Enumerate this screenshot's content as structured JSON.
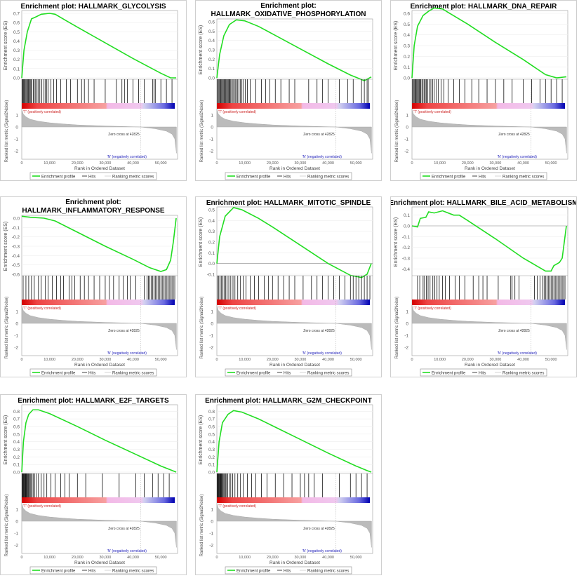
{
  "shared": {
    "es_axis_label": "Enrichment score (ES)",
    "metric_axis_label": "Ranked list metric (Signal2Noise)",
    "x_axis_label": "Rank in Ordered Dataset",
    "pos_label": "'T' (positively correlated)",
    "neg_label": "'N' (negatively correlated)",
    "zero_cross_label": "Zero cross at 42825",
    "zero_cross": 42825,
    "legend": [
      "Enrichment profile",
      "Hits",
      "Ranking metric scores"
    ],
    "x_ticks": [
      0,
      10000,
      20000,
      30000,
      40000,
      50000
    ],
    "x_tick_labels": [
      "0",
      "10,000",
      "20,000",
      "30,000",
      "40,000",
      "50,000"
    ],
    "x_max": 56000,
    "metric_ticks": [
      1,
      0,
      -1,
      -2
    ],
    "metric_profile": [
      [
        0,
        1.5
      ],
      [
        500,
        1.1
      ],
      [
        1500,
        0.85
      ],
      [
        3000,
        0.65
      ],
      [
        6000,
        0.48
      ],
      [
        10000,
        0.35
      ],
      [
        15000,
        0.25
      ],
      [
        20000,
        0.17
      ],
      [
        30000,
        0.08
      ],
      [
        42825,
        0
      ],
      [
        48000,
        -0.15
      ],
      [
        52000,
        -0.35
      ],
      [
        54000,
        -0.6
      ],
      [
        55000,
        -1.0
      ],
      [
        55600,
        -2.2
      ]
    ],
    "colors": {
      "es_line": "#22dd22",
      "pos": "#cc2222",
      "neg": "#2222bb"
    }
  },
  "chart_data": [
    {
      "type": "line",
      "title": [
        "Enrichment plot: HALLMARK_GLYCOLYSIS"
      ],
      "ylim": [
        0,
        0.7
      ],
      "y_ticks": [
        0,
        0.1,
        0.2,
        0.3,
        0.4,
        0.5,
        0.6,
        0.7
      ],
      "y_tick_labels": [
        "0.0",
        "0.1",
        "0.2",
        "0.3",
        "0.4",
        "0.5",
        "0.6",
        "0.7"
      ],
      "es": [
        [
          0,
          0
        ],
        [
          800,
          0.3
        ],
        [
          2000,
          0.5
        ],
        [
          3500,
          0.64
        ],
        [
          5000,
          0.66
        ],
        [
          7000,
          0.69
        ],
        [
          10000,
          0.7
        ],
        [
          12000,
          0.69
        ],
        [
          16000,
          0.62
        ],
        [
          20000,
          0.55
        ],
        [
          30000,
          0.38
        ],
        [
          40000,
          0.21
        ],
        [
          50000,
          0.05
        ],
        [
          53500,
          0
        ],
        [
          55500,
          0
        ]
      ],
      "hits": [
        200,
        400,
        600,
        900,
        1200,
        1500,
        1800,
        2100,
        2400,
        2700,
        3000,
        3300,
        3600,
        4200,
        4500,
        5000,
        5500,
        6000,
        6500,
        7200,
        8000,
        8500,
        9000,
        9500,
        10500,
        11500,
        12500,
        14000,
        16000,
        17500,
        20000,
        21500,
        22500,
        24000,
        26000,
        30000,
        34000,
        36000,
        37000,
        38000,
        40000,
        42000,
        44000,
        47000,
        47500,
        48000,
        50000,
        52000,
        54000
      ]
    },
    {
      "type": "line",
      "title": [
        "Enrichment plot:",
        "HALLMARK_OXIDATIVE_PHOSPHORYLATION"
      ],
      "ylim": [
        0,
        0.6
      ],
      "y_ticks": [
        0,
        0.1,
        0.2,
        0.3,
        0.4,
        0.5,
        0.6
      ],
      "y_tick_labels": [
        "0.0",
        "0.1",
        "0.2",
        "0.3",
        "0.4",
        "0.5",
        "0.6"
      ],
      "es": [
        [
          0,
          0
        ],
        [
          1000,
          0.25
        ],
        [
          2500,
          0.45
        ],
        [
          4500,
          0.57
        ],
        [
          7000,
          0.62
        ],
        [
          10000,
          0.61
        ],
        [
          15000,
          0.55
        ],
        [
          20000,
          0.47
        ],
        [
          30000,
          0.31
        ],
        [
          40000,
          0.15
        ],
        [
          48000,
          0.03
        ],
        [
          53000,
          -0.03
        ],
        [
          55500,
          0.01
        ]
      ],
      "hits": [
        200,
        500,
        800,
        1100,
        1400,
        1700,
        2000,
        2300,
        2600,
        2900,
        3200,
        3500,
        3800,
        4100,
        4400,
        4700,
        5000,
        5400,
        5800,
        6200,
        6600,
        7000,
        7500,
        8000,
        8500,
        9000,
        9600,
        10200,
        11000,
        12000,
        14000,
        16000,
        17500,
        19000,
        21000,
        23000,
        26000,
        28000,
        33000,
        36000,
        38000,
        40000,
        44000,
        47000,
        49000,
        52000,
        53000,
        54000,
        54500
      ]
    },
    {
      "type": "line",
      "title": [
        "Enrichment plot: HALLMARK_DNA_REPAIR"
      ],
      "ylim": [
        0,
        0.6
      ],
      "y_ticks": [
        0,
        0.1,
        0.2,
        0.3,
        0.4,
        0.5,
        0.6
      ],
      "y_tick_labels": [
        "0.0",
        "0.1",
        "0.2",
        "0.3",
        "0.4",
        "0.5",
        "0.6"
      ],
      "es": [
        [
          0,
          0
        ],
        [
          800,
          0.3
        ],
        [
          2000,
          0.48
        ],
        [
          4000,
          0.58
        ],
        [
          6000,
          0.62
        ],
        [
          8000,
          0.65
        ],
        [
          11000,
          0.64
        ],
        [
          20000,
          0.5
        ],
        [
          30000,
          0.33
        ],
        [
          40000,
          0.17
        ],
        [
          48000,
          0.03
        ],
        [
          52000,
          0
        ],
        [
          55500,
          0.01
        ]
      ],
      "hits": [
        200,
        500,
        800,
        1100,
        1400,
        1700,
        2000,
        2300,
        2600,
        2900,
        3200,
        3600,
        4000,
        4400,
        4800,
        5200,
        5700,
        6200,
        6800,
        7400,
        8000,
        8800,
        9500,
        10500,
        11500,
        13000,
        15000,
        17000,
        19000,
        21500,
        24000,
        27000,
        30000,
        33000,
        36000,
        40000,
        43000,
        46000,
        48000,
        50000,
        52000,
        54000
      ]
    },
    {
      "type": "line",
      "title": [
        "Enrichment plot:",
        "HALLMARK_INFLAMMATORY_RESPONSE"
      ],
      "ylim": [
        -0.6,
        0.0
      ],
      "y_ticks": [
        0,
        -0.1,
        -0.2,
        -0.3,
        -0.4,
        -0.5,
        -0.6
      ],
      "y_tick_labels": [
        "0.0",
        "-0.1",
        "-0.2",
        "-0.3",
        "-0.4",
        "-0.5",
        "-0.6"
      ],
      "es": [
        [
          0,
          0.02
        ],
        [
          3000,
          0.01
        ],
        [
          8000,
          0.0
        ],
        [
          12000,
          -0.03
        ],
        [
          20000,
          -0.15
        ],
        [
          30000,
          -0.3
        ],
        [
          40000,
          -0.44
        ],
        [
          46000,
          -0.53
        ],
        [
          50000,
          -0.57
        ],
        [
          52000,
          -0.55
        ],
        [
          53500,
          -0.45
        ],
        [
          54500,
          -0.25
        ],
        [
          55500,
          0
        ]
      ],
      "hits": [
        500,
        1500,
        2500,
        3500,
        4500,
        6000,
        7000,
        8500,
        9500,
        11000,
        12500,
        14000,
        15000,
        17000,
        18000,
        19000,
        21000,
        22500,
        24000,
        26000,
        28000,
        30000,
        31500,
        33000,
        35000,
        36500,
        38000,
        39000,
        41000,
        44000,
        45000,
        45500,
        46000,
        46500,
        47000,
        47500,
        48000,
        48500,
        49000,
        49500,
        50000,
        50500,
        51000,
        51500,
        52000,
        52500,
        53000,
        53500,
        54000,
        54500,
        55000
      ]
    },
    {
      "type": "line",
      "title": [
        "Enrichment plot: HALLMARK_MITOTIC_SPINDLE"
      ],
      "ylim": [
        -0.1,
        0.5
      ],
      "y_ticks": [
        0.5,
        0.4,
        0.3,
        0.2,
        0.1,
        0,
        -0.1
      ],
      "y_tick_labels": [
        "0.5",
        "0.4",
        "0.3",
        "0.2",
        "0.1",
        "0.0",
        "-0.1"
      ],
      "es": [
        [
          0,
          0
        ],
        [
          1000,
          0.25
        ],
        [
          3000,
          0.44
        ],
        [
          6000,
          0.52
        ],
        [
          9000,
          0.5
        ],
        [
          15000,
          0.42
        ],
        [
          20000,
          0.34
        ],
        [
          30000,
          0.17
        ],
        [
          40000,
          0.0
        ],
        [
          48000,
          -0.11
        ],
        [
          52000,
          -0.13
        ],
        [
          54000,
          -0.1
        ],
        [
          55500,
          0
        ]
      ],
      "hits": [
        300,
        700,
        1200,
        1700,
        2200,
        2700,
        3200,
        3700,
        4300,
        5000,
        5800,
        6500,
        7500,
        8500,
        9500,
        10500,
        12000,
        13500,
        15000,
        17000,
        18500,
        20000,
        22000,
        24000,
        26000,
        28000,
        31000,
        34000,
        36000,
        38000,
        40000,
        42000,
        44000,
        46000,
        48000,
        49000,
        50000,
        51000,
        52000,
        53000,
        54000,
        55000
      ]
    },
    {
      "type": "line",
      "title": [
        "Enrichment plot: HALLMARK_BILE_ACID_METABOLISM"
      ],
      "ylim": [
        -0.45,
        0.15
      ],
      "y_ticks": [
        0.1,
        0,
        -0.1,
        -0.2,
        -0.3,
        -0.4
      ],
      "y_tick_labels": [
        "0.1",
        "0.0",
        "-0.1",
        "-0.2",
        "-0.3",
        "-0.4"
      ],
      "es": [
        [
          0,
          0
        ],
        [
          2000,
          -0.01
        ],
        [
          3000,
          0.07
        ],
        [
          5000,
          0.08
        ],
        [
          6000,
          0.13
        ],
        [
          8000,
          0.12
        ],
        [
          11000,
          0.14
        ],
        [
          15000,
          0.1
        ],
        [
          17000,
          0.1
        ],
        [
          20000,
          0.05
        ],
        [
          30000,
          -0.12
        ],
        [
          40000,
          -0.3
        ],
        [
          48000,
          -0.42
        ],
        [
          50000,
          -0.42
        ],
        [
          51000,
          -0.37
        ],
        [
          53000,
          -0.34
        ],
        [
          54000,
          -0.3
        ],
        [
          55000,
          -0.1
        ],
        [
          55500,
          0
        ]
      ],
      "hits": [
        2000,
        2800,
        4000,
        4500,
        5200,
        5800,
        6500,
        7500,
        8200,
        9000,
        9800,
        11000,
        12000,
        13500,
        15500,
        17000,
        19000,
        22000,
        24000,
        25500,
        27000,
        31000,
        35500,
        36000,
        37000,
        38500,
        44000,
        45000,
        46000,
        47000,
        47500,
        48000,
        48500,
        49000,
        49500,
        50000,
        50500,
        51000,
        51500,
        52000,
        52500,
        53000,
        53500,
        54000,
        54500,
        55000
      ]
    },
    {
      "type": "line",
      "title": [
        "Enrichment plot: HALLMARK_E2F_TARGETS"
      ],
      "ylim": [
        0,
        0.85
      ],
      "y_ticks": [
        0,
        0.1,
        0.2,
        0.3,
        0.4,
        0.5,
        0.6,
        0.7,
        0.8
      ],
      "y_tick_labels": [
        "0.0",
        "0.1",
        "0.2",
        "0.3",
        "0.4",
        "0.5",
        "0.6",
        "0.7",
        "0.8"
      ],
      "es": [
        [
          0,
          0
        ],
        [
          600,
          0.4
        ],
        [
          1500,
          0.65
        ],
        [
          2500,
          0.76
        ],
        [
          4000,
          0.82
        ],
        [
          6000,
          0.82
        ],
        [
          10000,
          0.77
        ],
        [
          20000,
          0.6
        ],
        [
          30000,
          0.42
        ],
        [
          40000,
          0.25
        ],
        [
          50000,
          0.08
        ],
        [
          55500,
          0
        ]
      ],
      "hits": [
        100,
        300,
        500,
        700,
        900,
        1100,
        1300,
        1500,
        1700,
        1900,
        2100,
        2400,
        2700,
        3000,
        3300,
        3700,
        4100,
        4600,
        5200,
        6000,
        7000,
        8000,
        9000,
        10500,
        12000,
        14000,
        15500,
        17000,
        20000,
        23000,
        29000,
        35000,
        41000,
        44000,
        47000,
        49000,
        51000,
        53000
      ]
    },
    {
      "type": "line",
      "title": [
        "Enrichment plot: HALLMARK_G2M_CHECKPOINT"
      ],
      "ylim": [
        0,
        0.85
      ],
      "y_ticks": [
        0,
        0.1,
        0.2,
        0.3,
        0.4,
        0.5,
        0.6,
        0.7,
        0.8
      ],
      "y_tick_labels": [
        "0.0",
        "0.1",
        "0.2",
        "0.3",
        "0.4",
        "0.5",
        "0.6",
        "0.7",
        "0.8"
      ],
      "es": [
        [
          0,
          0
        ],
        [
          800,
          0.4
        ],
        [
          2000,
          0.65
        ],
        [
          4000,
          0.76
        ],
        [
          6000,
          0.81
        ],
        [
          9000,
          0.79
        ],
        [
          15000,
          0.7
        ],
        [
          20000,
          0.61
        ],
        [
          30000,
          0.43
        ],
        [
          40000,
          0.25
        ],
        [
          50000,
          0.08
        ],
        [
          54000,
          0.02
        ],
        [
          55500,
          0
        ]
      ],
      "hits": [
        100,
        300,
        500,
        700,
        900,
        1100,
        1300,
        1500,
        1700,
        1900,
        2200,
        2500,
        2800,
        3100,
        3500,
        3900,
        4400,
        5000,
        5700,
        6500,
        7500,
        8500,
        9500,
        11000,
        12500,
        14000,
        16000,
        18000,
        21000,
        24000,
        27000,
        30000,
        31500,
        33000,
        35000,
        38000,
        44000,
        48000,
        50000,
        52000,
        54000
      ]
    }
  ]
}
